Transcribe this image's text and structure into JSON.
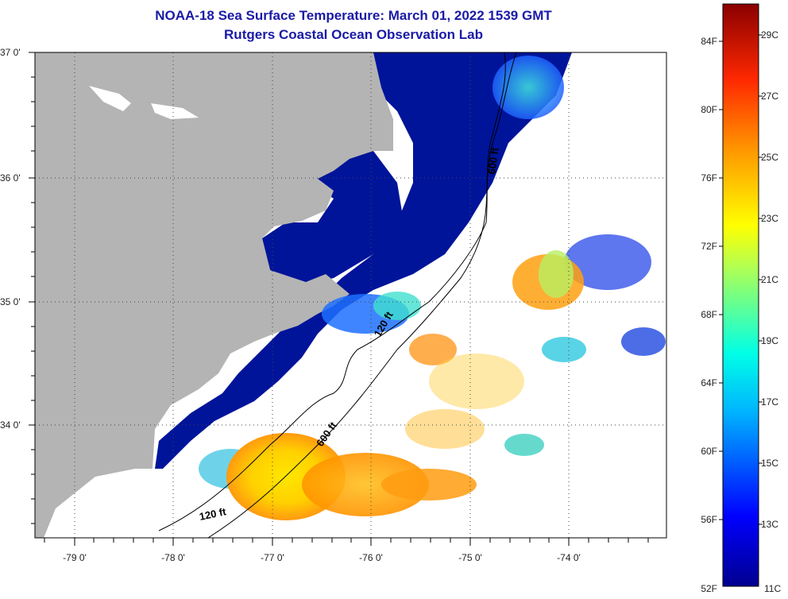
{
  "title": {
    "line1": "NOAA-18 Sea Surface Temperature:  March 01, 2022 1539 GMT",
    "line2": "Rutgers Coastal Ocean Observation Lab"
  },
  "map": {
    "lat_labels": [
      "37 0'",
      "36 0'",
      "35 0'",
      "34 0'"
    ],
    "lon_labels": [
      "-79 0'",
      "-78 0'",
      "-77 0'",
      "-76 0'",
      "-75 0'",
      "-74 0'"
    ],
    "contours": [
      "120 ft",
      "600 ft",
      "600 ft",
      "120 ft"
    ],
    "colors": {
      "land": "#b4b4b4",
      "cold": "#00149a",
      "ocean_nodata": "#ffffff"
    }
  },
  "colorbar": {
    "f_labels": [
      "84F",
      "80F",
      "76F",
      "72F",
      "68F",
      "64F",
      "60F",
      "56F",
      "52F"
    ],
    "c_labels": [
      "29C",
      "27C",
      "25C",
      "23C",
      "21C",
      "19C",
      "17C",
      "15C",
      "13C",
      "11C"
    ]
  }
}
